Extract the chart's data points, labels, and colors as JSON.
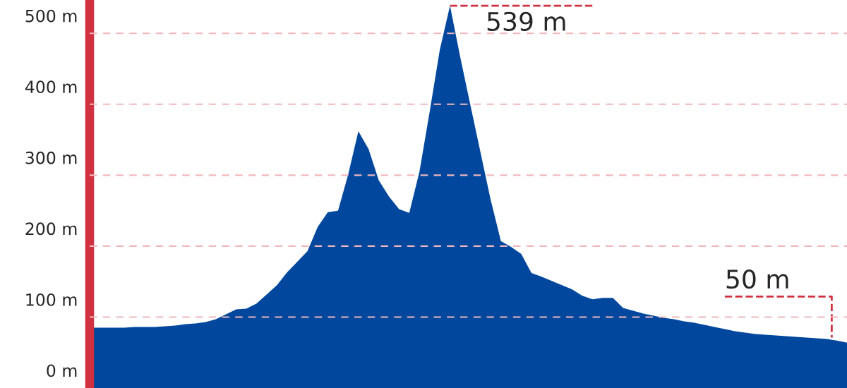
{
  "chart_data": {
    "type": "area",
    "color": "#00479d",
    "categories": [
      null,
      null,
      null,
      null,
      null,
      null,
      null,
      null,
      null,
      null,
      null,
      null,
      null,
      null,
      null,
      null,
      null,
      null,
      null,
      null,
      null,
      null,
      null,
      null,
      null,
      null,
      null,
      null,
      null,
      null,
      null,
      null,
      null,
      null,
      null,
      null,
      null,
      null,
      null,
      null,
      null,
      null,
      null,
      null,
      null,
      null,
      null,
      null,
      null,
      null,
      null,
      null,
      null,
      null,
      null,
      null,
      null,
      null,
      null,
      null,
      null,
      null,
      null,
      null,
      null,
      null,
      null,
      null,
      null,
      null,
      null,
      null,
      null,
      null,
      null
    ],
    "values": [
      85,
      85,
      85,
      85,
      86,
      86,
      86,
      87,
      88,
      90,
      91,
      93,
      97,
      104,
      111,
      112,
      119,
      132,
      145,
      163,
      178,
      193,
      227,
      248,
      250,
      301,
      362,
      337,
      293,
      270,
      252,
      247,
      305,
      389,
      477,
      539,
      467,
      399,
      332,
      265,
      207,
      199,
      189,
      162,
      157,
      151,
      145,
      139,
      130,
      125,
      127,
      127,
      113,
      109,
      105,
      102,
      99,
      97,
      94,
      92,
      89,
      86,
      83,
      80,
      78,
      76,
      75,
      74,
      73,
      72,
      71,
      70,
      69,
      67,
      64
    ],
    "ylim": [
      0,
      547
    ],
    "yticks": [
      {
        "value": 0,
        "label": "0 m"
      },
      {
        "value": 100,
        "label": "100 m"
      },
      {
        "value": 200,
        "label": "200 m"
      },
      {
        "value": 300,
        "label": "300 m"
      },
      {
        "value": 400,
        "label": "400 m"
      },
      {
        "value": 500,
        "label": "500 m"
      }
    ],
    "grid": "y",
    "tick_labels": "y",
    "annotations": [
      "539 m",
      "50 m"
    ]
  }
}
